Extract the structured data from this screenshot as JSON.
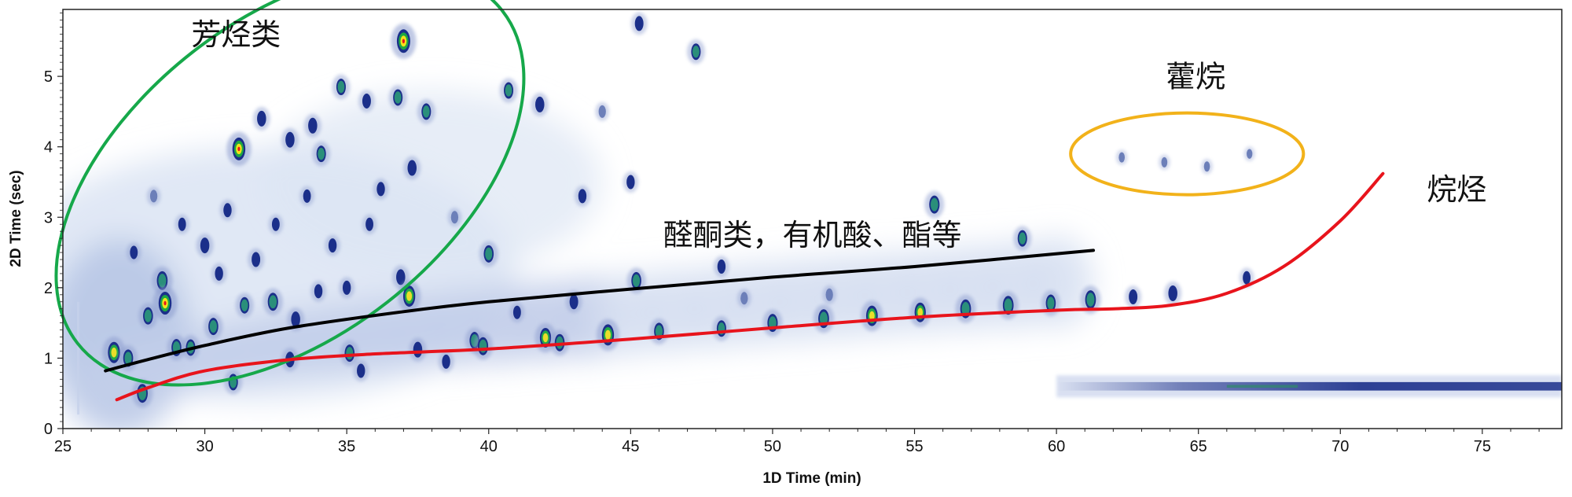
{
  "chart_data": {
    "type": "heatmap",
    "title": "",
    "xlabel": "1D Time (min)",
    "ylabel": "2D Time (sec)",
    "xlim": [
      25,
      77.8
    ],
    "ylim": [
      0,
      5.95
    ],
    "x_ticks": [
      25,
      30,
      35,
      40,
      45,
      50,
      55,
      60,
      65,
      70,
      75
    ],
    "y_ticks": [
      0,
      1,
      2,
      3,
      4,
      5
    ],
    "grid": false,
    "colors": {
      "aromatics_region": "#16a84a",
      "hopanes_region": "#f2b21a",
      "alkanes_line": "#e8141c",
      "oxygenates_line": "#000000",
      "intensity_low": "#dde6f4",
      "intensity_mid": "#1b2f8a",
      "intensity_high": "#e8141c"
    },
    "annotations": [
      {
        "text": "芳烃类",
        "x": 31.1,
        "y": 5.45
      },
      {
        "text": "藿烷",
        "x": 64.9,
        "y": 4.85
      },
      {
        "text": "烷烃",
        "x": 74.1,
        "y": 3.25
      },
      {
        "text": "醛酮类，有机酸、酯等",
        "x": 51.4,
        "y": 2.6
      }
    ],
    "regions": [
      {
        "label": "芳烃类",
        "shape": "ellipse",
        "color": "#16a84a",
        "center": [
          33.0,
          3.57
        ],
        "semi_x": 9.5,
        "semi_y": 2.25,
        "angle_deg": -38
      },
      {
        "label": "藿烷",
        "shape": "ellipse",
        "color": "#f2b21a",
        "center": [
          64.6,
          3.9
        ],
        "semi_x": 4.1,
        "semi_y": 0.58,
        "angle_deg": 0
      }
    ],
    "trend_lines": [
      {
        "label": "烷烃",
        "color": "#e8141c",
        "points": [
          [
            26.9,
            0.41
          ],
          [
            28,
            0.58
          ],
          [
            30,
            0.82
          ],
          [
            33,
            0.98
          ],
          [
            36,
            1.06
          ],
          [
            40,
            1.13
          ],
          [
            45,
            1.27
          ],
          [
            50,
            1.43
          ],
          [
            55,
            1.58
          ],
          [
            60,
            1.68
          ],
          [
            62,
            1.7
          ],
          [
            64,
            1.75
          ],
          [
            66,
            1.92
          ],
          [
            68,
            2.3
          ],
          [
            70,
            2.95
          ],
          [
            71.5,
            3.62
          ]
        ]
      },
      {
        "label": "醛酮类，有机酸、酯等",
        "color": "#000000",
        "points": [
          [
            26.5,
            0.82
          ],
          [
            28,
            0.98
          ],
          [
            30,
            1.18
          ],
          [
            33,
            1.43
          ],
          [
            37,
            1.66
          ],
          [
            40,
            1.8
          ],
          [
            45,
            1.98
          ],
          [
            50,
            2.15
          ],
          [
            55,
            2.3
          ],
          [
            61.3,
            2.53
          ]
        ]
      }
    ],
    "peaks": [
      {
        "x": 26.8,
        "y": 1.08,
        "i": 0.85
      },
      {
        "x": 27.3,
        "y": 1.0,
        "i": 0.6
      },
      {
        "x": 27.8,
        "y": 0.5,
        "i": 0.7
      },
      {
        "x": 28.0,
        "y": 1.6,
        "i": 0.6
      },
      {
        "x": 28.5,
        "y": 2.1,
        "i": 0.7
      },
      {
        "x": 28.6,
        "y": 1.78,
        "i": 0.95
      },
      {
        "x": 29.0,
        "y": 1.15,
        "i": 0.6
      },
      {
        "x": 29.5,
        "y": 1.15,
        "i": 0.55
      },
      {
        "x": 30.0,
        "y": 2.6,
        "i": 0.5
      },
      {
        "x": 30.3,
        "y": 1.45,
        "i": 0.6
      },
      {
        "x": 31.0,
        "y": 0.66,
        "i": 0.55
      },
      {
        "x": 31.2,
        "y": 3.97,
        "i": 0.95
      },
      {
        "x": 31.4,
        "y": 1.75,
        "i": 0.55
      },
      {
        "x": 31.8,
        "y": 2.4,
        "i": 0.45
      },
      {
        "x": 32.0,
        "y": 4.4,
        "i": 0.5
      },
      {
        "x": 32.4,
        "y": 1.8,
        "i": 0.65
      },
      {
        "x": 33.0,
        "y": 4.1,
        "i": 0.5
      },
      {
        "x": 33.0,
        "y": 0.98,
        "i": 0.5
      },
      {
        "x": 33.2,
        "y": 1.55,
        "i": 0.5
      },
      {
        "x": 33.8,
        "y": 4.3,
        "i": 0.5
      },
      {
        "x": 34.1,
        "y": 3.9,
        "i": 0.55
      },
      {
        "x": 34.5,
        "y": 2.6,
        "i": 0.4
      },
      {
        "x": 34.8,
        "y": 4.85,
        "i": 0.55
      },
      {
        "x": 35.0,
        "y": 2.0,
        "i": 0.4
      },
      {
        "x": 35.1,
        "y": 1.07,
        "i": 0.6
      },
      {
        "x": 35.5,
        "y": 0.82,
        "i": 0.4
      },
      {
        "x": 35.7,
        "y": 4.65,
        "i": 0.45
      },
      {
        "x": 36.2,
        "y": 3.4,
        "i": 0.4
      },
      {
        "x": 36.8,
        "y": 4.7,
        "i": 0.55
      },
      {
        "x": 36.9,
        "y": 2.15,
        "i": 0.5
      },
      {
        "x": 37.0,
        "y": 5.5,
        "i": 1.0
      },
      {
        "x": 37.2,
        "y": 1.88,
        "i": 0.85
      },
      {
        "x": 37.3,
        "y": 3.7,
        "i": 0.5
      },
      {
        "x": 37.5,
        "y": 1.12,
        "i": 0.5
      },
      {
        "x": 37.8,
        "y": 4.5,
        "i": 0.55
      },
      {
        "x": 38.5,
        "y": 0.95,
        "i": 0.4
      },
      {
        "x": 39.5,
        "y": 1.25,
        "i": 0.6
      },
      {
        "x": 39.8,
        "y": 1.17,
        "i": 0.65
      },
      {
        "x": 40.0,
        "y": 2.48,
        "i": 0.6
      },
      {
        "x": 40.7,
        "y": 4.8,
        "i": 0.55
      },
      {
        "x": 41.8,
        "y": 4.6,
        "i": 0.5
      },
      {
        "x": 42.0,
        "y": 1.29,
        "i": 0.75
      },
      {
        "x": 42.5,
        "y": 1.22,
        "i": 0.6
      },
      {
        "x": 43.0,
        "y": 1.8,
        "i": 0.45
      },
      {
        "x": 43.3,
        "y": 3.3,
        "i": 0.4
      },
      {
        "x": 44.2,
        "y": 1.33,
        "i": 0.85
      },
      {
        "x": 45.0,
        "y": 3.5,
        "i": 0.4
      },
      {
        "x": 45.2,
        "y": 2.1,
        "i": 0.6
      },
      {
        "x": 45.3,
        "y": 5.75,
        "i": 0.45
      },
      {
        "x": 46.0,
        "y": 1.38,
        "i": 0.6
      },
      {
        "x": 47.3,
        "y": 5.35,
        "i": 0.55
      },
      {
        "x": 48.2,
        "y": 1.42,
        "i": 0.55
      },
      {
        "x": 48.2,
        "y": 2.3,
        "i": 0.4
      },
      {
        "x": 50.0,
        "y": 1.5,
        "i": 0.65
      },
      {
        "x": 51.8,
        "y": 1.56,
        "i": 0.7
      },
      {
        "x": 53.5,
        "y": 1.6,
        "i": 0.8
      },
      {
        "x": 55.2,
        "y": 1.65,
        "i": 0.75
      },
      {
        "x": 55.7,
        "y": 3.18,
        "i": 0.65
      },
      {
        "x": 56.8,
        "y": 1.7,
        "i": 0.7
      },
      {
        "x": 58.3,
        "y": 1.75,
        "i": 0.7
      },
      {
        "x": 58.8,
        "y": 2.7,
        "i": 0.55
      },
      {
        "x": 59.8,
        "y": 1.78,
        "i": 0.6
      },
      {
        "x": 61.2,
        "y": 1.83,
        "i": 0.7
      },
      {
        "x": 62.7,
        "y": 1.87,
        "i": 0.45
      },
      {
        "x": 64.1,
        "y": 1.92,
        "i": 0.5
      },
      {
        "x": 66.7,
        "y": 2.14,
        "i": 0.35
      },
      {
        "x": 62.3,
        "y": 3.85,
        "i": 0.15
      },
      {
        "x": 63.8,
        "y": 3.78,
        "i": 0.15
      },
      {
        "x": 65.3,
        "y": 3.72,
        "i": 0.15
      },
      {
        "x": 66.8,
        "y": 3.9,
        "i": 0.12
      },
      {
        "x": 30.8,
        "y": 3.1,
        "i": 0.4
      },
      {
        "x": 29.2,
        "y": 2.9,
        "i": 0.35
      },
      {
        "x": 28.2,
        "y": 3.3,
        "i": 0.3
      },
      {
        "x": 33.6,
        "y": 3.3,
        "i": 0.35
      },
      {
        "x": 35.8,
        "y": 2.9,
        "i": 0.35
      },
      {
        "x": 38.8,
        "y": 3.0,
        "i": 0.3
      },
      {
        "x": 32.5,
        "y": 2.9,
        "i": 0.35
      },
      {
        "x": 27.5,
        "y": 2.5,
        "i": 0.35
      },
      {
        "x": 30.5,
        "y": 2.2,
        "i": 0.4
      },
      {
        "x": 34.0,
        "y": 1.95,
        "i": 0.4
      },
      {
        "x": 41.0,
        "y": 1.65,
        "i": 0.35
      },
      {
        "x": 49.0,
        "y": 1.85,
        "i": 0.3
      },
      {
        "x": 52.0,
        "y": 1.9,
        "i": 0.3
      },
      {
        "x": 44.0,
        "y": 4.5,
        "i": 0.3
      }
    ],
    "baseline_band": {
      "x_from": 60,
      "x_to": 77.8,
      "y_center": 0.6,
      "y_halfwidth": 0.06
    }
  }
}
